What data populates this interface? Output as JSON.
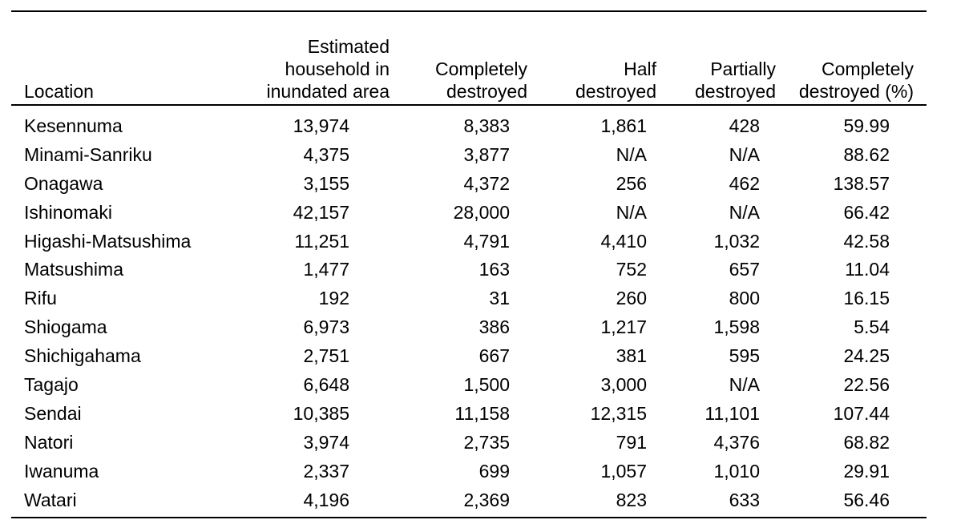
{
  "headers": {
    "location": "Location",
    "estimated": [
      "Estimated",
      "household in",
      "inundated area"
    ],
    "completely": [
      "Completely",
      "destroyed"
    ],
    "half": [
      "Half",
      "destroyed"
    ],
    "partially": [
      "Partially",
      "destroyed"
    ],
    "percent": [
      "Completely",
      "destroyed (%)"
    ]
  },
  "rows": [
    [
      "Kesennuma",
      "13,974",
      "8,383",
      "1,861",
      "428",
      "59.99"
    ],
    [
      "Minami-Sanriku",
      "4,375",
      "3,877",
      "N/A",
      "N/A",
      "88.62"
    ],
    [
      "Onagawa",
      "3,155",
      "4,372",
      "256",
      "462",
      "138.57"
    ],
    [
      "Ishinomaki",
      "42,157",
      "28,000",
      "N/A",
      "N/A",
      "66.42"
    ],
    [
      "Higashi-Matsushima",
      "11,251",
      "4,791",
      "4,410",
      "1,032",
      "42.58"
    ],
    [
      "Matsushima",
      "1,477",
      "163",
      "752",
      "657",
      "11.04"
    ],
    [
      "Rifu",
      "192",
      "31",
      "260",
      "800",
      "16.15"
    ],
    [
      "Shiogama",
      "6,973",
      "386",
      "1,217",
      "1,598",
      "5.54"
    ],
    [
      "Shichigahama",
      "2,751",
      "667",
      "381",
      "595",
      "24.25"
    ],
    [
      "Tagajo",
      "6,648",
      "1,500",
      "3,000",
      "N/A",
      "22.56"
    ],
    [
      "Sendai",
      "10,385",
      "11,158",
      "12,315",
      "11,101",
      "107.44"
    ],
    [
      "Natori",
      "3,974",
      "2,735",
      "791",
      "4,376",
      "68.82"
    ],
    [
      "Iwanuma",
      "2,337",
      "699",
      "1,057",
      "1,010",
      "29.91"
    ],
    [
      "Watari",
      "4,196",
      "2,369",
      "823",
      "633",
      "56.46"
    ]
  ]
}
